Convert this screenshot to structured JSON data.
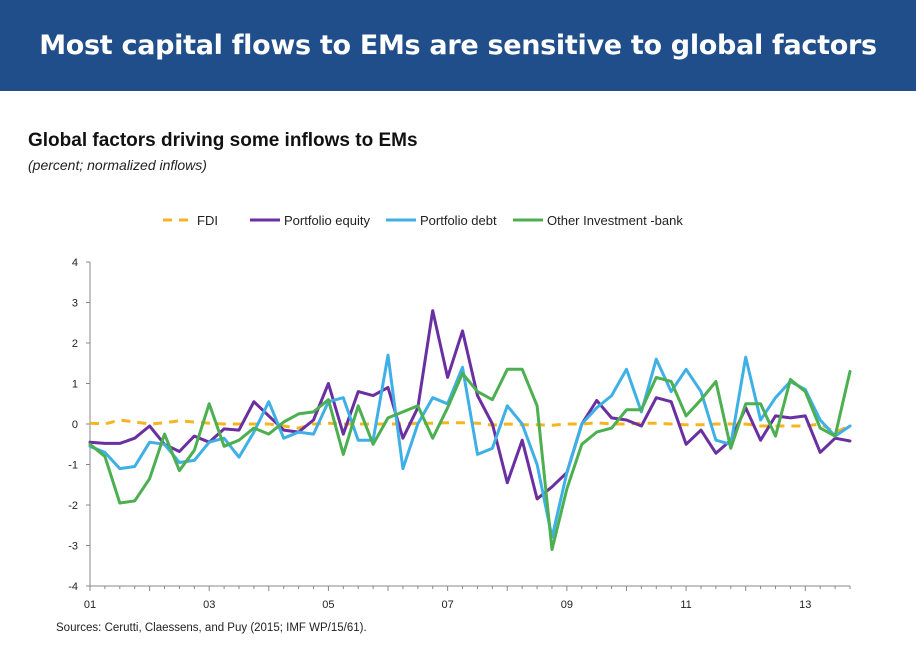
{
  "banner": {
    "title": "Most capital flows to EMs are sensitive to global factors"
  },
  "source": "Sources: Cerutti, Claessens, and Puy (2015; IMF WP/15/61).",
  "chart_data": {
    "type": "line",
    "title": "Global factors driving some inflows to EMs",
    "subtitle": "(percent; normalized inflows)",
    "xlabel": "",
    "ylabel": "",
    "x_range": [
      2001.0,
      2013.75
    ],
    "ylim": [
      -4,
      4
    ],
    "y_ticks": [
      4,
      3,
      2,
      1,
      0,
      -1,
      -2,
      -3,
      -4
    ],
    "x_ticks": [
      "01",
      "03",
      "05",
      "07",
      "09",
      "11",
      "13"
    ],
    "x_tick_values": [
      2001,
      2003,
      2005,
      2007,
      2009,
      2011,
      2013
    ],
    "legend_position": "top",
    "grid": false,
    "x": [
      2001.0,
      2001.25,
      2001.5,
      2001.75,
      2002.0,
      2002.25,
      2002.5,
      2002.75,
      2003.0,
      2003.25,
      2003.5,
      2003.75,
      2004.0,
      2004.25,
      2004.5,
      2004.75,
      2005.0,
      2005.25,
      2005.5,
      2005.75,
      2006.0,
      2006.25,
      2006.5,
      2006.75,
      2007.0,
      2007.25,
      2007.5,
      2007.75,
      2008.0,
      2008.25,
      2008.5,
      2008.75,
      2009.0,
      2009.25,
      2009.5,
      2009.75,
      2010.0,
      2010.25,
      2010.5,
      2010.75,
      2011.0,
      2011.25,
      2011.5,
      2011.75,
      2012.0,
      2012.25,
      2012.5,
      2012.75,
      2013.0,
      2013.25,
      2013.5,
      2013.75
    ],
    "series": [
      {
        "name": "FDI",
        "color": "#f5b520",
        "dashed": true,
        "values": [
          0.02,
          0.0,
          0.1,
          0.05,
          0.0,
          0.03,
          0.08,
          0.05,
          0.02,
          0.0,
          0.0,
          0.0,
          0.0,
          -0.05,
          -0.1,
          0.0,
          0.02,
          0.0,
          0.0,
          0.0,
          0.0,
          0.0,
          0.02,
          0.02,
          0.03,
          0.03,
          0.02,
          -0.03,
          0.0,
          -0.02,
          -0.02,
          -0.03,
          0.0,
          0.0,
          0.03,
          0.0,
          0.0,
          0.02,
          0.02,
          0.0,
          -0.02,
          -0.02,
          0.0,
          0.0,
          0.0,
          -0.05,
          -0.05,
          -0.05,
          -0.05,
          0.0,
          -0.2,
          -0.05
        ]
      },
      {
        "name": "Portfolio equity",
        "color": "#6a2fa0",
        "dashed": false,
        "values": [
          -0.45,
          -0.48,
          -0.48,
          -0.35,
          -0.05,
          -0.5,
          -0.68,
          -0.3,
          -0.45,
          -0.12,
          -0.15,
          0.55,
          0.2,
          -0.15,
          -0.2,
          0.1,
          1.0,
          -0.25,
          0.8,
          0.7,
          0.9,
          -0.35,
          0.4,
          2.8,
          1.15,
          2.3,
          0.7,
          0.0,
          -1.45,
          -0.4,
          -1.85,
          -1.55,
          -1.2,
          0.0,
          0.58,
          0.15,
          0.1,
          -0.05,
          0.65,
          0.55,
          -0.5,
          -0.15,
          -0.72,
          -0.4,
          0.4,
          -0.4,
          0.2,
          0.15,
          0.2,
          -0.7,
          -0.35,
          -0.42
        ]
      },
      {
        "name": "Portfolio debt",
        "color": "#3fb0e6",
        "dashed": false,
        "values": [
          -0.55,
          -0.7,
          -1.1,
          -1.05,
          -0.45,
          -0.5,
          -0.95,
          -0.9,
          -0.45,
          -0.35,
          -0.82,
          -0.2,
          0.55,
          -0.35,
          -0.2,
          -0.25,
          0.55,
          0.65,
          -0.4,
          -0.4,
          1.7,
          -1.1,
          0.0,
          0.65,
          0.5,
          1.4,
          -0.75,
          -0.6,
          0.45,
          0.0,
          -1.0,
          -2.8,
          -1.2,
          0.0,
          0.4,
          0.7,
          1.35,
          0.3,
          1.6,
          0.8,
          1.35,
          0.8,
          -0.4,
          -0.5,
          1.65,
          0.1,
          0.65,
          1.05,
          0.85,
          0.1,
          -0.3,
          -0.05
        ]
      },
      {
        "name": "Other Investment -bank",
        "color": "#4caf50",
        "dashed": false,
        "values": [
          -0.5,
          -0.8,
          -1.95,
          -1.9,
          -1.35,
          -0.25,
          -1.15,
          -0.65,
          0.5,
          -0.55,
          -0.4,
          -0.1,
          -0.25,
          0.05,
          0.25,
          0.3,
          0.6,
          -0.75,
          0.45,
          -0.5,
          0.15,
          0.3,
          0.45,
          -0.35,
          0.4,
          1.25,
          0.8,
          0.6,
          1.35,
          1.35,
          0.45,
          -3.1,
          -1.6,
          -0.5,
          -0.2,
          -0.1,
          0.35,
          0.35,
          1.15,
          1.05,
          0.2,
          0.6,
          1.05,
          -0.6,
          0.5,
          0.5,
          -0.3,
          1.1,
          0.8,
          -0.1,
          -0.3,
          1.3
        ]
      }
    ]
  }
}
